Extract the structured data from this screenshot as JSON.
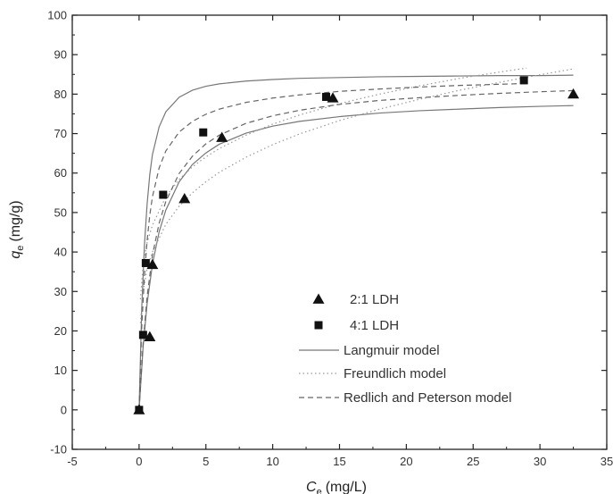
{
  "chart_data": {
    "type": "scatter",
    "xlabel_main": "C",
    "xlabel_sub": "e",
    "xlabel_unit": "(mg/L)",
    "ylabel_main": "q",
    "ylabel_sub": "e",
    "ylabel_unit": "(mg/g)",
    "xlim": [
      -5,
      35
    ],
    "ylim": [
      -10,
      100
    ],
    "x_ticks": [
      -5,
      0,
      5,
      10,
      15,
      20,
      25,
      30,
      35
    ],
    "y_ticks": [
      -10,
      0,
      10,
      20,
      30,
      40,
      50,
      60,
      70,
      80,
      90,
      100
    ],
    "grid": false,
    "legend_position": "lower-right",
    "series": [
      {
        "name": "2:1 LDH",
        "kind": "points",
        "marker": "triangle",
        "color": "#111111",
        "x": [
          0.0,
          0.8,
          1.0,
          3.4,
          6.2,
          14.5,
          32.5
        ],
        "y": [
          0.0,
          18.5,
          36.8,
          53.5,
          69.0,
          79.0,
          80.0
        ]
      },
      {
        "name": "4:1 LDH",
        "kind": "points",
        "marker": "square",
        "color": "#111111",
        "x": [
          0.0,
          0.3,
          0.5,
          1.8,
          4.8,
          14.0,
          28.8
        ],
        "y": [
          0.0,
          19.0,
          37.2,
          54.5,
          70.3,
          79.3,
          83.5
        ]
      },
      {
        "name": "Langmuir model",
        "kind": "lines",
        "dash": "solid",
        "color": "#777777",
        "curves": [
          {
            "x": [
              0,
              0.2,
              0.4,
              0.6,
              0.8,
              1,
              1.5,
              2,
              3,
              4,
              5,
              6,
              8,
              10,
              12,
              15,
              18,
              21,
              24,
              27,
              30,
              32.5
            ],
            "y": [
              0,
              25.9,
              41.7,
              52.1,
              59.6,
              64.7,
              71.7,
              75.5,
              79.2,
              81.0,
              82.0,
              82.6,
              83.3,
              83.7,
              84.0,
              84.2,
              84.4,
              84.5,
              84.6,
              84.7,
              84.7,
              84.8
            ]
          },
          {
            "x": [
              0,
              0.3,
              0.6,
              1,
              1.5,
              2,
              3,
              4,
              5,
              6,
              8,
              10,
              12,
              15,
              18,
              21,
              24,
              27,
              30,
              32.5
            ],
            "y": [
              0,
              15.9,
              26.9,
              36.9,
              45.1,
              50.6,
              57.8,
              62.2,
              65.1,
              67.3,
              70.1,
              71.9,
              73.1,
              74.3,
              75.2,
              75.8,
              76.2,
              76.6,
              76.9,
              77.1
            ]
          }
        ]
      },
      {
        "name": "Freundlich model",
        "kind": "lines",
        "dash": "dotted",
        "color": "#999999",
        "curves": [
          {
            "x": [
              0.1,
              0.3,
              0.6,
              1,
              2,
              3,
              4,
              5,
              6,
              8,
              10,
              12,
              15,
              18,
              21,
              24,
              27,
              30,
              32.5
            ],
            "y": [
              22.0,
              30.0,
              35.8,
              40.0,
              47.0,
              51.6,
              55.0,
              57.8,
              60.2,
              64.0,
              67.2,
              69.9,
              73.3,
              76.2,
              78.7,
              81.0,
              83.0,
              84.9,
              86.4
            ]
          },
          {
            "x": [
              0.1,
              0.3,
              0.6,
              1,
              2,
              3,
              4,
              5,
              6,
              8,
              10,
              12,
              15,
              18,
              21,
              24,
              27,
              29
            ],
            "y": [
              28.0,
              36.5,
              42.4,
              46.8,
              54.0,
              58.4,
              61.6,
              64.1,
              66.2,
              69.6,
              72.4,
              74.7,
              77.6,
              80.0,
              82.1,
              84.0,
              85.6,
              86.6
            ]
          }
        ]
      },
      {
        "name": "Redlich and Peterson model",
        "kind": "lines",
        "dash": "dashed",
        "color": "#666666",
        "curves": [
          {
            "x": [
              0,
              0.2,
              0.4,
              0.6,
              0.8,
              1,
              1.5,
              2,
              3,
              4,
              5,
              6,
              8,
              10,
              12,
              15,
              18,
              21,
              24,
              27,
              29
            ],
            "y": [
              0,
              21.0,
              34.0,
              42.9,
              49.3,
              54.0,
              61.3,
              65.6,
              70.4,
              73.1,
              74.9,
              76.2,
              77.9,
              79.0,
              79.8,
              80.7,
              81.3,
              81.8,
              82.2,
              82.5,
              82.7
            ]
          },
          {
            "x": [
              0,
              0.3,
              0.6,
              1,
              1.5,
              2,
              3,
              4,
              5,
              6,
              8,
              10,
              12,
              15,
              18,
              21,
              24,
              27,
              30,
              32.5
            ],
            "y": [
              0,
              16.7,
              28.7,
              39.2,
              47.3,
              52.8,
              59.9,
              64.3,
              67.4,
              69.6,
              72.6,
              74.5,
              75.9,
              77.4,
              78.4,
              79.1,
              79.7,
              80.2,
              80.6,
              80.9
            ]
          }
        ]
      }
    ]
  }
}
